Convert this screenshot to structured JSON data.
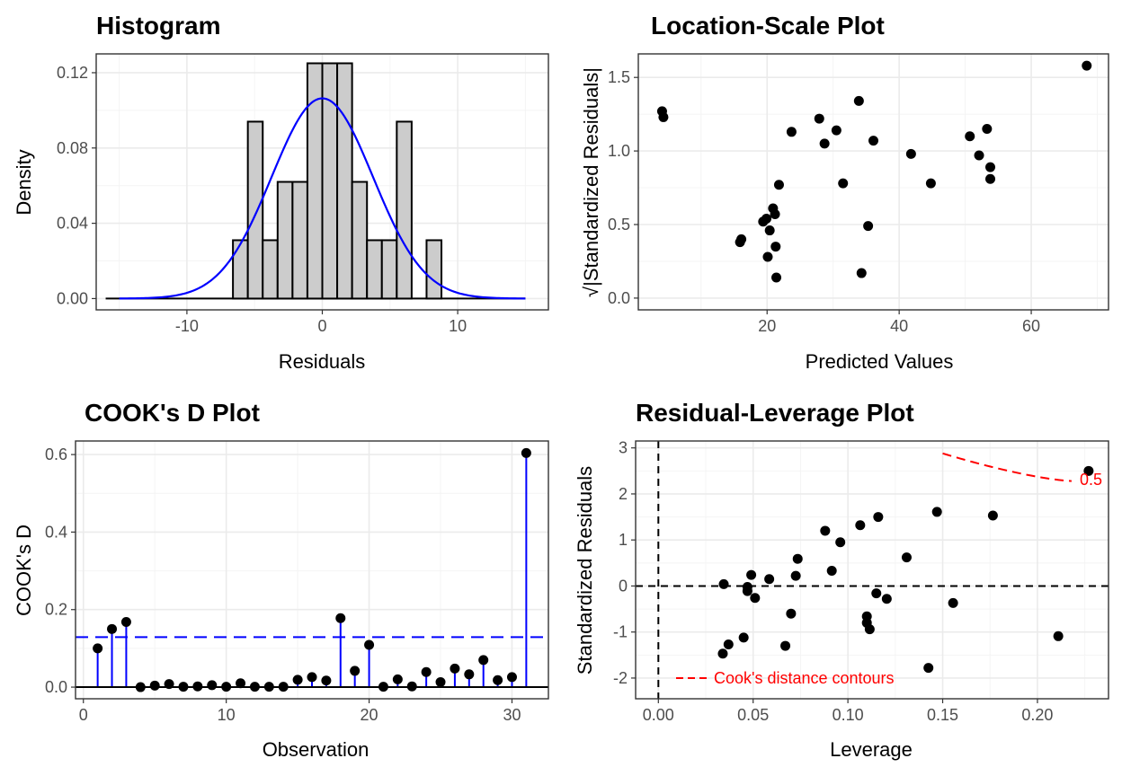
{
  "colors": {
    "bar_fill": "#cccccc",
    "blue": "#0000ff",
    "red": "#ff0000",
    "grid": "#ebebeb",
    "grid_minor": "#f4f4f4",
    "panel_border": "#333333",
    "point": "#000000"
  },
  "chart_data": [
    {
      "type": "histogram",
      "title": "Histogram",
      "xlabel": "Residuals",
      "ylabel": "Density",
      "xlim": [
        -16.7,
        16.7
      ],
      "ylim": [
        -0.006,
        0.13
      ],
      "xticks": [
        -10,
        0,
        10
      ],
      "xtick_labels": [
        "-10",
        "0",
        "10"
      ],
      "yticks": [
        0,
        0.04,
        0.08,
        0.12
      ],
      "ytick_labels": [
        "0.00",
        "0.04",
        "0.08",
        "0.12"
      ],
      "bin_width": 1.1,
      "bins": [
        {
          "x0": -6.6,
          "x1": -5.5,
          "density": 0.031
        },
        {
          "x0": -5.5,
          "x1": -4.4,
          "density": 0.094
        },
        {
          "x0": -4.4,
          "x1": -3.3,
          "density": 0.031
        },
        {
          "x0": -3.3,
          "x1": -2.2,
          "density": 0.062
        },
        {
          "x0": -2.2,
          "x1": -1.1,
          "density": 0.062
        },
        {
          "x0": -1.1,
          "x1": 0.0,
          "density": 0.125
        },
        {
          "x0": 0.0,
          "x1": 1.1,
          "density": 0.125
        },
        {
          "x0": 1.1,
          "x1": 2.2,
          "density": 0.125
        },
        {
          "x0": 2.2,
          "x1": 3.3,
          "density": 0.062
        },
        {
          "x0": 3.3,
          "x1": 4.4,
          "density": 0.031
        },
        {
          "x0": 4.4,
          "x1": 5.5,
          "density": 0.031
        },
        {
          "x0": 5.5,
          "x1": 6.6,
          "density": 0.094
        },
        {
          "x0": 6.6,
          "x1": 7.7,
          "density": 0.0
        },
        {
          "x0": 7.7,
          "x1": 8.8,
          "density": 0.031
        }
      ],
      "baseline_range": [
        -16.0,
        15.0
      ],
      "normal_curve": {
        "mean": 0,
        "sd": 3.75,
        "range": [
          -15,
          15
        ]
      }
    },
    {
      "type": "scatter",
      "title": "Location-Scale Plot",
      "xlabel": "Predicted Values",
      "ylabel": "√|Standardized Residuals|",
      "xlim": [
        0.5,
        71.7
      ],
      "ylim": [
        -0.08,
        1.66
      ],
      "xticks": [
        20,
        40,
        60
      ],
      "xtick_labels": [
        "20",
        "40",
        "60"
      ],
      "yticks": [
        0,
        0.5,
        1.0,
        1.5
      ],
      "ytick_labels": [
        "0.0",
        "0.5",
        "1.0",
        "1.5"
      ],
      "points": [
        [
          4.1,
          1.27
        ],
        [
          4.3,
          1.23
        ],
        [
          15.9,
          0.38
        ],
        [
          16.1,
          0.4
        ],
        [
          19.4,
          0.52
        ],
        [
          19.9,
          0.54
        ],
        [
          20.1,
          0.28
        ],
        [
          20.4,
          0.46
        ],
        [
          20.9,
          0.61
        ],
        [
          21.2,
          0.57
        ],
        [
          21.3,
          0.35
        ],
        [
          21.4,
          0.14
        ],
        [
          21.8,
          0.77
        ],
        [
          23.7,
          1.13
        ],
        [
          27.9,
          1.22
        ],
        [
          28.7,
          1.05
        ],
        [
          30.5,
          1.14
        ],
        [
          31.5,
          0.78
        ],
        [
          33.9,
          1.34
        ],
        [
          34.3,
          0.17
        ],
        [
          35.3,
          0.49
        ],
        [
          36.1,
          1.07
        ],
        [
          41.8,
          0.98
        ],
        [
          44.8,
          0.78
        ],
        [
          50.7,
          1.1
        ],
        [
          52.1,
          0.97
        ],
        [
          53.3,
          1.15
        ],
        [
          53.8,
          0.89
        ],
        [
          53.8,
          0.81
        ],
        [
          68.4,
          1.58
        ]
      ]
    },
    {
      "type": "lollipop",
      "title": "COOK's D Plot",
      "xlabel": "Observation",
      "ylabel": "COOK's D",
      "xlim": [
        -0.55,
        32.55
      ],
      "ylim": [
        -0.03,
        0.635
      ],
      "xticks": [
        0,
        10,
        20,
        30
      ],
      "xtick_labels": [
        "0",
        "10",
        "20",
        "30"
      ],
      "yticks": [
        0,
        0.2,
        0.4,
        0.6
      ],
      "ytick_labels": [
        "0.0",
        "0.2",
        "0.4",
        "0.6"
      ],
      "threshold": 0.129,
      "x": [
        1,
        2,
        3,
        4,
        5,
        6,
        7,
        8,
        9,
        10,
        11,
        12,
        13,
        14,
        15,
        16,
        17,
        18,
        19,
        20,
        21,
        22,
        23,
        24,
        25,
        26,
        27,
        28,
        29,
        30,
        31
      ],
      "values": [
        0.1,
        0.15,
        0.168,
        0.0,
        0.004,
        0.008,
        0.001,
        0.002,
        0.005,
        0.001,
        0.01,
        0.001,
        0.001,
        0.001,
        0.019,
        0.026,
        0.017,
        0.178,
        0.042,
        0.109,
        0.001,
        0.02,
        0.002,
        0.039,
        0.013,
        0.048,
        0.033,
        0.07,
        0.018,
        0.026,
        0.604
      ]
    },
    {
      "type": "scatter",
      "title": "Residual-Leverage Plot",
      "xlabel": "Leverage",
      "ylabel": "Standardized Residuals",
      "xlim": [
        -0.012,
        0.2375
      ],
      "ylim": [
        -2.45,
        3.15
      ],
      "xticks": [
        0.0,
        0.05,
        0.1,
        0.15,
        0.2
      ],
      "xtick_labels": [
        "0.00",
        "0.05",
        "0.10",
        "0.15",
        "0.20"
      ],
      "yticks": [
        -2,
        -1,
        0,
        1,
        2,
        3
      ],
      "ytick_labels": [
        "-2",
        "-1",
        "0",
        "1",
        "2",
        "3"
      ],
      "contour": {
        "label": "0.5",
        "x": [
          0.15,
          0.218
        ],
        "y": [
          2.88,
          2.28
        ]
      },
      "legend_text": "Cook's distance contours",
      "points": [
        [
          0.0345,
          0.04
        ],
        [
          0.034,
          -1.47
        ],
        [
          0.037,
          -1.27
        ],
        [
          0.045,
          -1.12
        ],
        [
          0.047,
          -0.02
        ],
        [
          0.047,
          -0.11
        ],
        [
          0.049,
          0.24
        ],
        [
          0.051,
          -0.26
        ],
        [
          0.0585,
          0.15
        ],
        [
          0.067,
          -1.3
        ],
        [
          0.07,
          -0.6
        ],
        [
          0.0725,
          0.22
        ],
        [
          0.0735,
          0.59
        ],
        [
          0.088,
          1.2
        ],
        [
          0.0915,
          0.33
        ],
        [
          0.096,
          0.95
        ],
        [
          0.1065,
          1.32
        ],
        [
          0.11,
          -0.66
        ],
        [
          0.11,
          -0.8
        ],
        [
          0.1115,
          -0.94
        ],
        [
          0.115,
          -0.16
        ],
        [
          0.116,
          1.5
        ],
        [
          0.1205,
          -0.28
        ],
        [
          0.131,
          0.62
        ],
        [
          0.1425,
          -1.78
        ],
        [
          0.147,
          1.61
        ],
        [
          0.1555,
          -0.37
        ],
        [
          0.1765,
          1.53
        ],
        [
          0.211,
          -1.09
        ],
        [
          0.227,
          2.5
        ]
      ]
    }
  ]
}
